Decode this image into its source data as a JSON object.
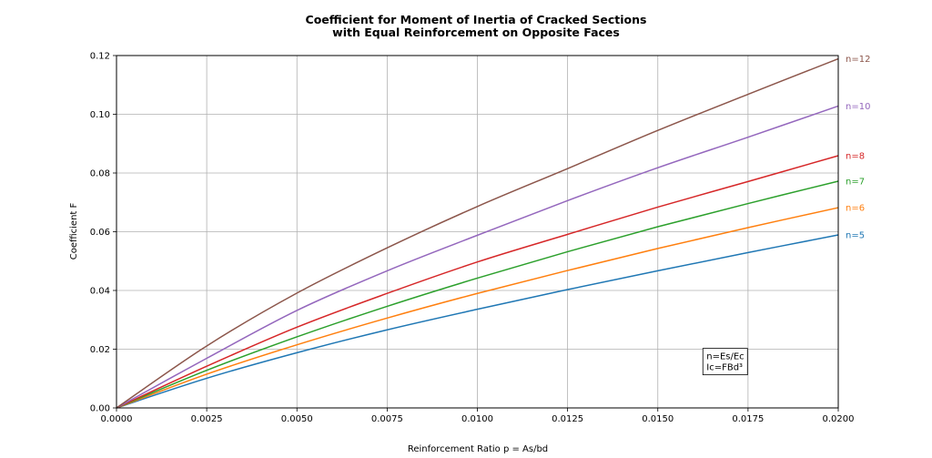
{
  "chart_data": {
    "type": "line",
    "title_lines": [
      "Coefficient for Moment of Inertia of Cracked Sections",
      "with Equal Reinforcement on Opposite Faces"
    ],
    "xlabel": "Reinforcement Ratio p = As/bd",
    "ylabel": "Coefficient  F",
    "xlim": [
      0,
      0.02
    ],
    "ylim": [
      0,
      0.12
    ],
    "grid": true,
    "xticks": [
      "0.0000",
      "0.0025",
      "0.0050",
      "0.0075",
      "0.0100",
      "0.0125",
      "0.0150",
      "0.0175",
      "0.0200"
    ],
    "yticks": [
      "0.00",
      "0.02",
      "0.04",
      "0.06",
      "0.08",
      "0.10",
      "0.12"
    ],
    "x": [
      0,
      0.0025,
      0.005,
      0.0075,
      0.01,
      0.0125,
      0.015,
      0.0175,
      0.02
    ],
    "series": [
      {
        "name": "n=5",
        "color": "#1f77b4",
        "values": [
          0,
          0.0101,
          0.0188,
          0.0266,
          0.0336,
          0.0403,
          0.0467,
          0.0529,
          0.0589
        ]
      },
      {
        "name": "n=6",
        "color": "#ff7f0e",
        "values": [
          0,
          0.0115,
          0.0215,
          0.0306,
          0.039,
          0.0468,
          0.0543,
          0.0614,
          0.0682
        ]
      },
      {
        "name": "n=7",
        "color": "#2ca02c",
        "values": [
          0,
          0.0128,
          0.0242,
          0.0346,
          0.0442,
          0.0532,
          0.0617,
          0.0696,
          0.0772
        ]
      },
      {
        "name": "n=8",
        "color": "#d62728",
        "values": [
          0,
          0.0142,
          0.0275,
          0.039,
          0.0497,
          0.0591,
          0.0684,
          0.0771,
          0.0859
        ]
      },
      {
        "name": "n=10",
        "color": "#9467bd",
        "values": [
          0,
          0.0169,
          0.0332,
          0.0467,
          0.0588,
          0.0706,
          0.0818,
          0.0922,
          0.1028
        ]
      },
      {
        "name": "n=12",
        "color": "#8c564b",
        "values": [
          0,
          0.0211,
          0.0391,
          0.0545,
          0.0686,
          0.0815,
          0.0945,
          0.1068,
          0.1189
        ]
      }
    ],
    "annotation": {
      "lines": [
        "n=Es/Ec",
        "Ic=FBd³"
      ],
      "x": 0.0164,
      "y": 0.015
    }
  }
}
